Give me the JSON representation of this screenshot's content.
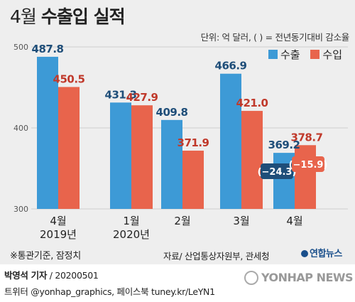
{
  "title": {
    "prefix": "4월",
    "main": "수출입 실적"
  },
  "unit_note": "단위: 억 달러, ( ) = 전년동기대비 감소율",
  "note": "※통관기준, 잠정치",
  "source": "자료/ 산업통상자원부, 관세청",
  "logo": "연합뉴스",
  "byline": {
    "name": "박영석 기자",
    "date": "20200501"
  },
  "social": "트위터 @yonhap_graphics, 페이스북 tuney.kr/LeYN1",
  "watermark": "YONHAP NEWS",
  "colors": {
    "export": "#3d9ad6",
    "import": "#e8644c",
    "export_label": "#1f4e79",
    "import_label": "#c0392b"
  },
  "chart_data": {
    "type": "bar",
    "categories": [
      "4월 2019년",
      "1월 2020년",
      "2월",
      "3월",
      "4월"
    ],
    "category_lines": [
      [
        "4월",
        "2019년"
      ],
      [
        "1월",
        "2020년"
      ],
      [
        "2월"
      ],
      [
        "3월"
      ],
      [
        "4월"
      ]
    ],
    "series": [
      {
        "name": "수출",
        "values": [
          487.8,
          431.3,
          409.8,
          466.9,
          369.2
        ],
        "labels": [
          "487.8",
          "431.3",
          "409.8",
          "466.9",
          "369.2"
        ]
      },
      {
        "name": "수입",
        "values": [
          450.5,
          427.9,
          371.9,
          421.0,
          378.7
        ],
        "labels": [
          "450.5",
          "427.9",
          "371.9",
          "421.0",
          "378.7"
        ]
      }
    ],
    "annotations": [
      {
        "series": "수출",
        "category": "4월",
        "text": "(−24.3)"
      },
      {
        "series": "수입",
        "category": "4월",
        "text": "(−15.9)"
      }
    ],
    "yticks": [
      300,
      400,
      500
    ],
    "ytick_labels": [
      "300",
      "400",
      "500"
    ],
    "ylim": [
      300,
      510
    ],
    "grid": true,
    "legend": "top-right"
  }
}
